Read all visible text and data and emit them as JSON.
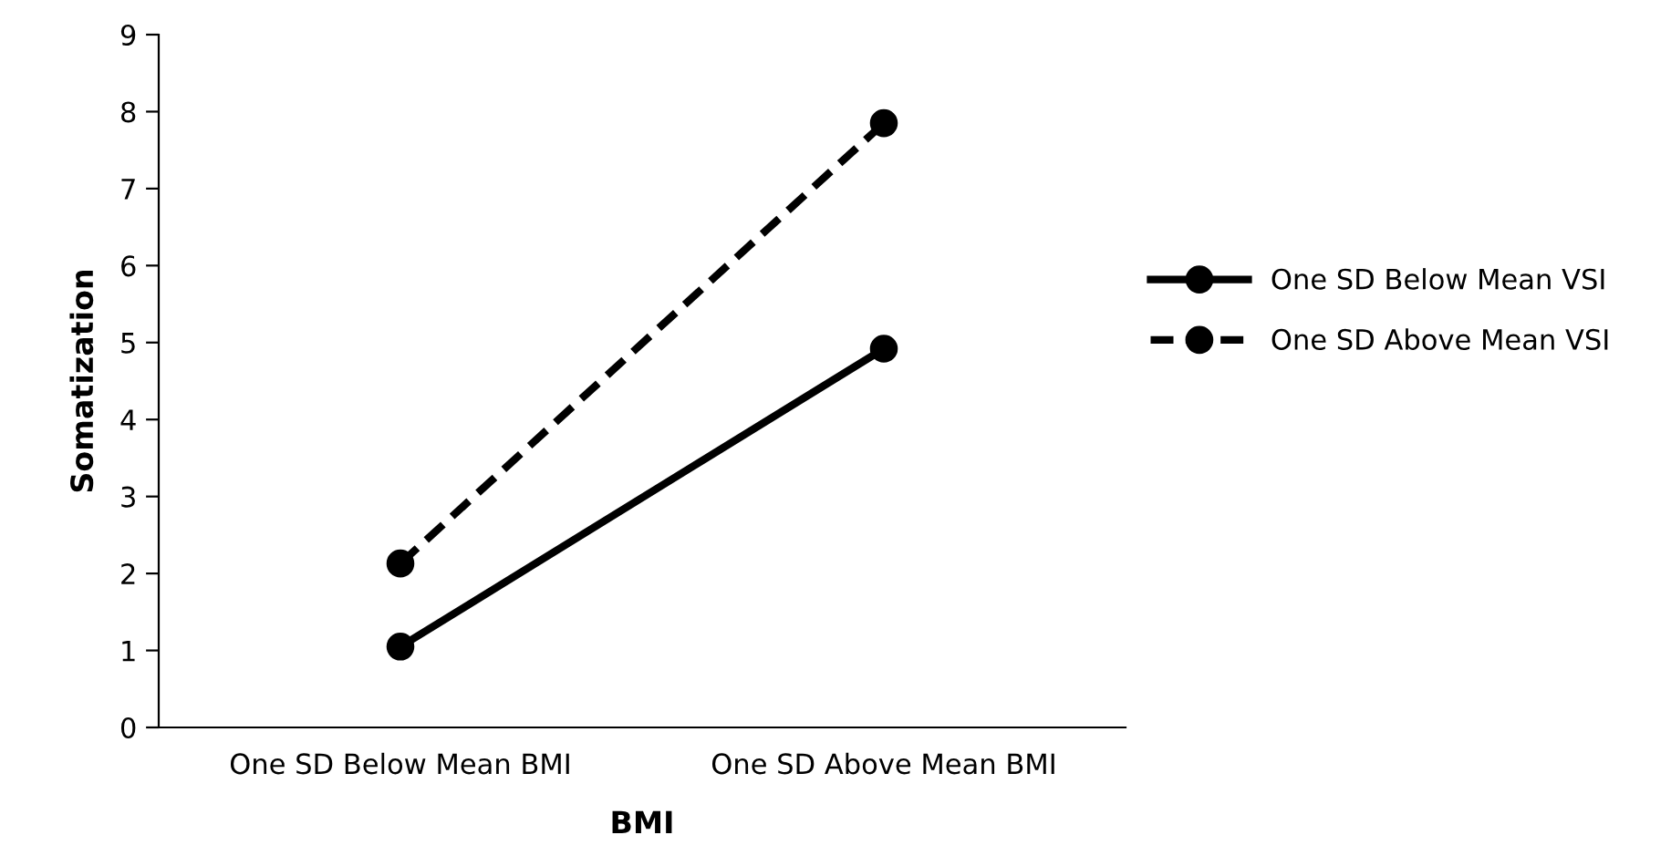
{
  "chart_data": {
    "type": "line",
    "xlabel": "BMI",
    "ylabel": "Somatization",
    "categories": [
      "One SD Below Mean BMI",
      "One SD Above Mean BMI"
    ],
    "series": [
      {
        "name": "One SD Below Mean VSI",
        "color": "#000000",
        "values": [
          1.05,
          4.92
        ],
        "line_style": "solid"
      },
      {
        "name": "One SD Above Mean VSI",
        "color": "#000000",
        "values": [
          2.13,
          7.85
        ],
        "line_style": "dashed"
      }
    ],
    "ylim": [
      0,
      9
    ],
    "yticks": [
      0,
      1,
      2,
      3,
      4,
      5,
      6,
      7,
      8,
      9
    ],
    "grid": false,
    "legend": "right",
    "marker": "circle"
  }
}
